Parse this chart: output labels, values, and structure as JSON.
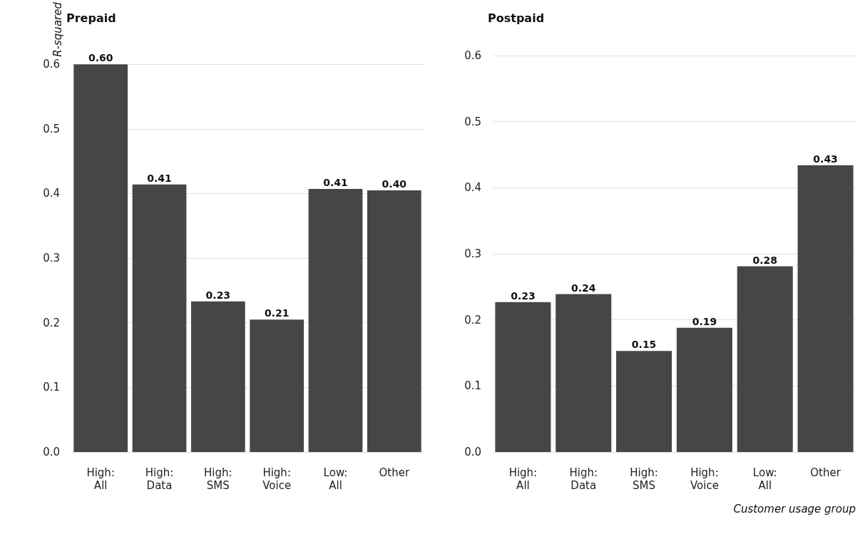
{
  "chart_data": [
    {
      "type": "bar",
      "title": "Prepaid",
      "ylabel": "R-squared",
      "categories": [
        "High: All",
        "High: Data",
        "High: SMS",
        "High: Voice",
        "Low: All",
        "Other"
      ],
      "series": [
        {
          "color": "#464646",
          "values": [
            0.6,
            0.414,
            0.233,
            0.205,
            0.407,
            0.405
          ],
          "value_labels": [
            "0.60",
            "0.41",
            "0.23",
            "0.21",
            "0.41",
            "0.40"
          ]
        }
      ],
      "ylim": [
        0,
        0.6
      ],
      "yticks": [
        {
          "value": 0,
          "label": "0.0"
        },
        {
          "value": 0.1,
          "label": "0.1"
        },
        {
          "value": 0.2,
          "label": "0.2"
        },
        {
          "value": 0.3,
          "label": "0.3"
        },
        {
          "value": 0.4,
          "label": "0.4"
        },
        {
          "value": 0.5,
          "label": "0.5"
        },
        {
          "value": 0.6,
          "label": "0.6"
        }
      ],
      "grid": "y"
    },
    {
      "type": "bar",
      "title": "Postpaid",
      "xlabel": "Customer usage group",
      "categories": [
        "High: All",
        "High: Data",
        "High: SMS",
        "High: Voice",
        "Low: All",
        "Other"
      ],
      "series": [
        {
          "color": "#464646",
          "values": [
            0.227,
            0.239,
            0.153,
            0.188,
            0.281,
            0.434
          ],
          "value_labels": [
            "0.23",
            "0.24",
            "0.15",
            "0.19",
            "0.28",
            "0.43"
          ]
        }
      ],
      "ylim": [
        0,
        0.6
      ],
      "yticks": [
        {
          "value": 0,
          "label": "0.0"
        },
        {
          "value": 0.1,
          "label": "0.1"
        },
        {
          "value": 0.2,
          "label": "0.2"
        },
        {
          "value": 0.3,
          "label": "0.3"
        },
        {
          "value": 0.4,
          "label": "0.4"
        },
        {
          "value": 0.5,
          "label": "0.5"
        },
        {
          "value": 0.6,
          "label": "0.6"
        }
      ],
      "grid": "y"
    }
  ]
}
